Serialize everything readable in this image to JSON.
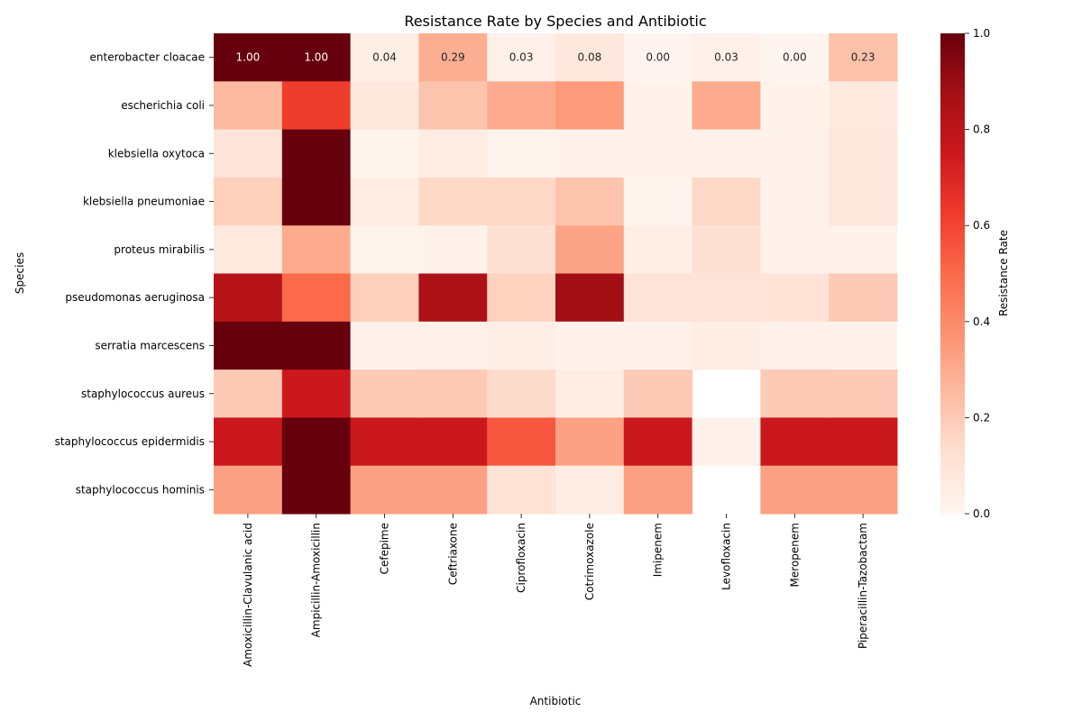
{
  "chart_data": {
    "type": "heatmap",
    "title": "Resistance Rate by Species and Antibiotic",
    "xlabel": "Antibiotic",
    "ylabel": "Species",
    "colorbar_label": "Resistance Rate",
    "colormap": "Reds",
    "vlim": [
      0,
      1
    ],
    "colorbar_ticks": [
      "0.0",
      "0.2",
      "0.4",
      "0.6",
      "0.8",
      "1.0"
    ],
    "x_categories": [
      "Amoxicillin-Clavulanic acid",
      "Ampicillin-Amoxicillin",
      "Cefepime",
      "Ceftriaxone",
      "Ciprofloxacin",
      "Cotrimoxazole",
      "Imipenem",
      "Levofloxacin",
      "Meropenem",
      "Piperacillin-Tazobactam"
    ],
    "y_categories": [
      "enterobacter cloacae",
      "escherichia coli",
      "klebsiella oxytoca",
      "klebsiella pneumoniae",
      "proteus mirabilis",
      "pseudomonas aeruginosa",
      "serratia marcescens",
      "staphylococcus aureus",
      "staphylococcus epidermidis",
      "staphylococcus hominis"
    ],
    "values": [
      [
        1.0,
        1.0,
        0.04,
        0.29,
        0.03,
        0.08,
        0.0,
        0.03,
        0.0,
        0.23
      ],
      [
        0.25,
        0.62,
        0.08,
        0.22,
        0.3,
        0.35,
        0.02,
        0.3,
        0.02,
        0.07
      ],
      [
        0.1,
        1.0,
        0.01,
        0.05,
        0.01,
        0.02,
        0.02,
        0.02,
        0.02,
        0.08
      ],
      [
        0.18,
        1.0,
        0.05,
        0.15,
        0.15,
        0.22,
        0.01,
        0.15,
        0.02,
        0.08
      ],
      [
        0.07,
        0.3,
        0.01,
        0.02,
        0.12,
        0.32,
        0.04,
        0.12,
        0.02,
        0.02
      ],
      [
        0.82,
        0.5,
        0.18,
        0.85,
        0.17,
        0.88,
        0.1,
        0.1,
        0.11,
        0.2
      ],
      [
        1.0,
        1.0,
        0.02,
        0.03,
        0.04,
        0.02,
        0.02,
        0.05,
        0.03,
        0.02
      ],
      [
        0.2,
        0.75,
        0.2,
        0.2,
        0.14,
        0.05,
        0.2,
        null,
        0.2,
        0.2
      ],
      [
        0.75,
        1.0,
        0.75,
        0.75,
        0.55,
        0.33,
        0.75,
        0.02,
        0.75,
        0.75
      ],
      [
        0.33,
        1.0,
        0.33,
        0.33,
        0.11,
        0.05,
        0.33,
        null,
        0.33,
        0.33
      ]
    ],
    "labeled_row": 0,
    "row_labels": [
      "1.00",
      "1.00",
      "0.04",
      "0.29",
      "0.03",
      "0.08",
      "0.00",
      "0.03",
      "0.00",
      "0.23"
    ]
  }
}
